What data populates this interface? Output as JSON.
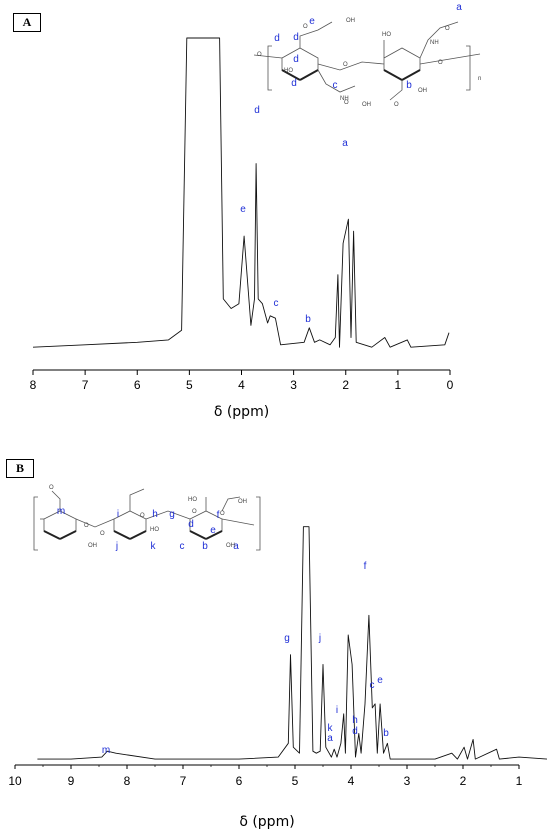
{
  "panels": [
    {
      "label": "A",
      "xaxis_title": "δ (ppm)",
      "ticks": [
        "8",
        "7",
        "6",
        "5",
        "4",
        "3",
        "2",
        "1",
        "0"
      ],
      "peaks": [
        "e",
        "d",
        "c",
        "b",
        "a"
      ],
      "structure": {
        "site_labels": [
          "e",
          "a",
          "d",
          "d",
          "d",
          "d",
          "c",
          "b"
        ],
        "atoms": [
          "OH",
          "O",
          "O",
          "HO",
          "O",
          "NH",
          "O",
          "OH",
          "HO",
          "NH",
          "O",
          "O",
          "OH",
          "O",
          "n"
        ]
      }
    },
    {
      "label": "B",
      "xaxis_title": "δ (ppm)",
      "ticks": [
        "10",
        "9",
        "8",
        "7",
        "6",
        "5",
        "4",
        "3",
        "2",
        "1"
      ],
      "peaks": [
        "m",
        "g",
        "j",
        "k",
        "a",
        "i",
        "h",
        "d",
        "f",
        "c",
        "e",
        "b"
      ],
      "structure": {
        "site_labels": [
          "m",
          "i",
          "h",
          "g",
          "d",
          "f",
          "e",
          "j",
          "k",
          "c",
          "b",
          "a"
        ],
        "atoms": [
          "O",
          "O",
          "OH",
          "O",
          "O",
          "HO",
          "O",
          "HO",
          "OH",
          "O",
          "OH"
        ]
      }
    }
  ],
  "chart_data": [
    {
      "type": "line",
      "title": "",
      "xlabel": "δ (ppm)",
      "ylabel": "",
      "xlim": [
        8,
        0
      ],
      "x_reversed": true,
      "yaxis_shown": false,
      "series": [
        {
          "points": [
            [
              8.0,
              0.02
            ],
            [
              7.0,
              0.03
            ],
            [
              6.0,
              0.04
            ],
            [
              5.4,
              0.05
            ],
            [
              5.15,
              0.09
            ],
            [
              5.05,
              1.3
            ],
            [
              4.42,
              1.3
            ],
            [
              4.35,
              0.22
            ],
            [
              4.2,
              0.18
            ],
            [
              4.05,
              0.2
            ],
            [
              3.95,
              0.48
            ],
            [
              3.82,
              0.11
            ],
            [
              3.75,
              0.22
            ],
            [
              3.72,
              0.78
            ],
            [
              3.68,
              0.22
            ],
            [
              3.6,
              0.2
            ],
            [
              3.55,
              0.16
            ],
            [
              3.5,
              0.12
            ],
            [
              3.45,
              0.15
            ],
            [
              3.35,
              0.14
            ],
            [
              3.25,
              0.03
            ],
            [
              2.8,
              0.04
            ],
            [
              2.7,
              0.1
            ],
            [
              2.6,
              0.04
            ],
            [
              2.5,
              0.05
            ],
            [
              2.3,
              0.03
            ],
            [
              2.2,
              0.06
            ],
            [
              2.15,
              0.32
            ],
            [
              2.12,
              0.02
            ],
            [
              2.05,
              0.45
            ],
            [
              1.95,
              0.55
            ],
            [
              1.9,
              0.06
            ],
            [
              1.85,
              0.5
            ],
            [
              1.8,
              0.04
            ],
            [
              1.5,
              0.02
            ],
            [
              1.25,
              0.06
            ],
            [
              1.15,
              0.02
            ],
            [
              0.82,
              0.05
            ],
            [
              0.75,
              0.02
            ],
            [
              0.1,
              0.03
            ],
            [
              0.02,
              0.08
            ]
          ]
        }
      ],
      "annotations": [
        {
          "text": "e",
          "x": 3.95
        },
        {
          "text": "d",
          "x": 3.72
        },
        {
          "text": "c",
          "x": 3.3
        },
        {
          "text": "b",
          "x": 2.7
        },
        {
          "text": "a",
          "x": 2.0
        }
      ]
    },
    {
      "type": "line",
      "title": "",
      "xlabel": "δ (ppm)",
      "ylabel": "",
      "xlim": [
        10,
        0.5
      ],
      "x_reversed": true,
      "yaxis_shown": false,
      "series": [
        {
          "points": [
            [
              9.6,
              0.02
            ],
            [
              9.0,
              0.02
            ],
            [
              8.45,
              0.03
            ],
            [
              8.35,
              0.06
            ],
            [
              8.2,
              0.05
            ],
            [
              7.5,
              0.02
            ],
            [
              6.0,
              0.02
            ],
            [
              5.3,
              0.03
            ],
            [
              5.12,
              0.1
            ],
            [
              5.08,
              0.55
            ],
            [
              5.03,
              0.08
            ],
            [
              4.92,
              0.05
            ],
            [
              4.85,
              1.2
            ],
            [
              4.75,
              1.2
            ],
            [
              4.68,
              0.06
            ],
            [
              4.62,
              0.05
            ],
            [
              4.55,
              0.06
            ],
            [
              4.5,
              0.5
            ],
            [
              4.45,
              0.08
            ],
            [
              4.35,
              0.03
            ],
            [
              4.3,
              0.07
            ],
            [
              4.25,
              0.03
            ],
            [
              4.18,
              0.1
            ],
            [
              4.13,
              0.25
            ],
            [
              4.1,
              0.05
            ],
            [
              4.05,
              0.65
            ],
            [
              3.98,
              0.5
            ],
            [
              3.92,
              0.03
            ],
            [
              3.86,
              0.15
            ],
            [
              3.82,
              0.05
            ],
            [
              3.75,
              0.3
            ],
            [
              3.68,
              0.75
            ],
            [
              3.62,
              0.28
            ],
            [
              3.57,
              0.3
            ],
            [
              3.53,
              0.05
            ],
            [
              3.48,
              0.3
            ],
            [
              3.42,
              0.05
            ],
            [
              3.35,
              0.1
            ],
            [
              3.3,
              0.02
            ],
            [
              3.0,
              0.02
            ],
            [
              2.5,
              0.02
            ],
            [
              2.2,
              0.05
            ],
            [
              2.1,
              0.02
            ],
            [
              1.98,
              0.08
            ],
            [
              1.92,
              0.02
            ],
            [
              1.82,
              0.12
            ],
            [
              1.78,
              0.02
            ],
            [
              1.4,
              0.07
            ],
            [
              1.35,
              0.02
            ],
            [
              1.0,
              0.03
            ],
            [
              0.5,
              0.02
            ]
          ]
        }
      ],
      "annotations": [
        {
          "text": "m",
          "x": 8.4
        },
        {
          "text": "g",
          "x": 5.08
        },
        {
          "text": "j",
          "x": 4.5
        },
        {
          "text": "k",
          "x": 4.32
        },
        {
          "text": "a",
          "x": 4.32
        },
        {
          "text": "i",
          "x": 4.13
        },
        {
          "text": "h",
          "x": 3.86
        },
        {
          "text": "d",
          "x": 3.86
        },
        {
          "text": "f",
          "x": 3.68
        },
        {
          "text": "c",
          "x": 3.55
        },
        {
          "text": "e",
          "x": 3.47
        },
        {
          "text": "b",
          "x": 3.35
        }
      ]
    }
  ],
  "colors": {
    "annotation": "#1f2fd6",
    "trace": "#111111"
  }
}
